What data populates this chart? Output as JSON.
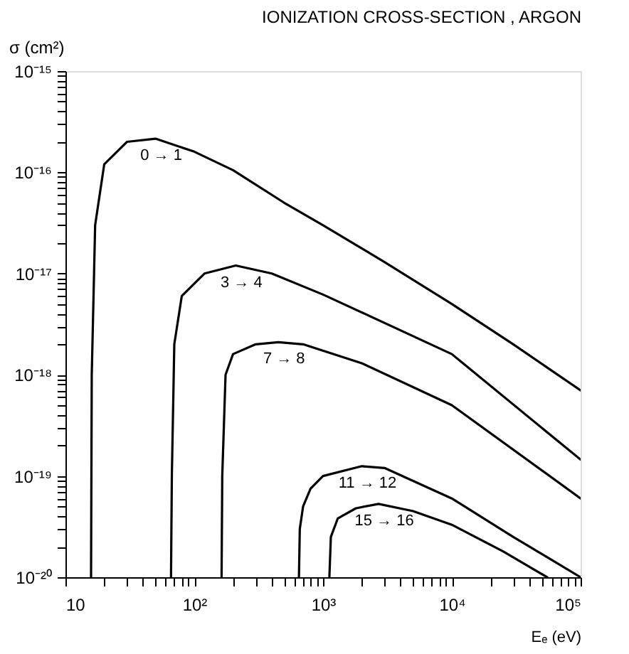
{
  "chart_data": {
    "type": "line",
    "title": "IONIZATION CROSS-SECTION , ARGON",
    "xlabel": "Eₑ (eV)",
    "ylabel": "σ (cm²)",
    "log": "xy",
    "grid": false,
    "legend": false,
    "marker": "none",
    "line_style": "solid",
    "xlim": [
      10,
      100000
    ],
    "ylim": [
      1e-20,
      1e-15
    ],
    "xticks": [
      {
        "value": 10,
        "label": "10"
      },
      {
        "value": 20,
        "label": null
      },
      {
        "value": 30,
        "label": null
      },
      {
        "value": 40,
        "label": null
      },
      {
        "value": 50,
        "label": null
      },
      {
        "value": 60,
        "label": null
      },
      {
        "value": 70,
        "label": null
      },
      {
        "value": 80,
        "label": null
      },
      {
        "value": 90,
        "label": null
      },
      {
        "value": 100,
        "label": "10²"
      },
      {
        "value": 200,
        "label": null
      },
      {
        "value": 300,
        "label": null
      },
      {
        "value": 400,
        "label": null
      },
      {
        "value": 500,
        "label": null
      },
      {
        "value": 600,
        "label": null
      },
      {
        "value": 700,
        "label": null
      },
      {
        "value": 800,
        "label": null
      },
      {
        "value": 900,
        "label": null
      },
      {
        "value": 1000,
        "label": "10³"
      },
      {
        "value": 2000,
        "label": null
      },
      {
        "value": 3000,
        "label": null
      },
      {
        "value": 4000,
        "label": null
      },
      {
        "value": 5000,
        "label": null
      },
      {
        "value": 6000,
        "label": null
      },
      {
        "value": 7000,
        "label": null
      },
      {
        "value": 8000,
        "label": null
      },
      {
        "value": 9000,
        "label": null
      },
      {
        "value": 10000,
        "label": "10⁴"
      },
      {
        "value": 20000,
        "label": null
      },
      {
        "value": 30000,
        "label": null
      },
      {
        "value": 40000,
        "label": null
      },
      {
        "value": 50000,
        "label": null
      },
      {
        "value": 60000,
        "label": null
      },
      {
        "value": 70000,
        "label": null
      },
      {
        "value": 80000,
        "label": null
      },
      {
        "value": 90000,
        "label": null
      },
      {
        "value": 100000,
        "label": "10⁵"
      }
    ],
    "yticks": [
      {
        "value": 1e-20,
        "label": "10⁻²⁰"
      },
      {
        "value": 2e-20,
        "label": null
      },
      {
        "value": 3e-20,
        "label": null
      },
      {
        "value": 4e-20,
        "label": null
      },
      {
        "value": 5e-20,
        "label": null
      },
      {
        "value": 6e-20,
        "label": null
      },
      {
        "value": 7e-20,
        "label": null
      },
      {
        "value": 8e-20,
        "label": null
      },
      {
        "value": 9e-20,
        "label": null
      },
      {
        "value": 1e-19,
        "label": "10⁻¹⁹"
      },
      {
        "value": 2e-19,
        "label": null
      },
      {
        "value": 3e-19,
        "label": null
      },
      {
        "value": 4e-19,
        "label": null
      },
      {
        "value": 5e-19,
        "label": null
      },
      {
        "value": 6e-19,
        "label": null
      },
      {
        "value": 7e-19,
        "label": null
      },
      {
        "value": 8e-19,
        "label": null
      },
      {
        "value": 9e-19,
        "label": null
      },
      {
        "value": 1e-18,
        "label": "10⁻¹⁸"
      },
      {
        "value": 2e-18,
        "label": null
      },
      {
        "value": 3e-18,
        "label": null
      },
      {
        "value": 4e-18,
        "label": null
      },
      {
        "value": 5e-18,
        "label": null
      },
      {
        "value": 6e-18,
        "label": null
      },
      {
        "value": 7e-18,
        "label": null
      },
      {
        "value": 8e-18,
        "label": null
      },
      {
        "value": 9e-18,
        "label": null
      },
      {
        "value": 1e-17,
        "label": "10⁻¹⁷"
      },
      {
        "value": 2e-17,
        "label": null
      },
      {
        "value": 3e-17,
        "label": null
      },
      {
        "value": 4e-17,
        "label": null
      },
      {
        "value": 5e-17,
        "label": null
      },
      {
        "value": 6e-17,
        "label": null
      },
      {
        "value": 7e-17,
        "label": null
      },
      {
        "value": 8e-17,
        "label": null
      },
      {
        "value": 9e-17,
        "label": null
      },
      {
        "value": 1e-16,
        "label": "10⁻¹⁶"
      },
      {
        "value": 2e-16,
        "label": null
      },
      {
        "value": 3e-16,
        "label": null
      },
      {
        "value": 4e-16,
        "label": null
      },
      {
        "value": 5e-16,
        "label": null
      },
      {
        "value": 6e-16,
        "label": null
      },
      {
        "value": 7e-16,
        "label": null
      },
      {
        "value": 8e-16,
        "label": null
      },
      {
        "value": 9e-16,
        "label": null
      },
      {
        "value": 1e-15,
        "label": "10⁻¹⁵"
      }
    ],
    "series": [
      {
        "name": "0 → 1",
        "color": "#000000",
        "x": [
          15.8,
          16,
          17,
          20,
          30,
          50,
          100,
          200,
          500,
          1000,
          3000,
          10000,
          30000,
          100000
        ],
        "values": [
          1e-20,
          1e-18,
          3e-17,
          1.2e-16,
          2e-16,
          2.15e-16,
          1.6e-16,
          1.05e-16,
          5e-17,
          3e-17,
          1.3e-17,
          5e-18,
          2e-18,
          7e-19
        ]
      },
      {
        "name": "3 → 4",
        "color": "#000000",
        "x": [
          66,
          67,
          70,
          80,
          120,
          210,
          400,
          1000,
          10000,
          100000
        ],
        "values": [
          1e-20,
          1e-19,
          2e-18,
          6e-18,
          1e-17,
          1.2e-17,
          1e-17,
          6.2e-18,
          1.6e-18,
          1.45e-19
        ]
      },
      {
        "name": "7 → 8",
        "color": "#000000",
        "x": [
          163,
          165,
          175,
          200,
          300,
          450,
          700,
          2000,
          10000,
          100000
        ],
        "values": [
          1e-20,
          1e-19,
          1e-18,
          1.6e-18,
          2e-18,
          2.1e-18,
          2e-18,
          1.3e-18,
          5e-19,
          6e-20
        ]
      },
      {
        "name": "11 → 12",
        "color": "#000000",
        "x": [
          650,
          660,
          700,
          800,
          1000,
          2000,
          3000,
          10000,
          30000,
          100000
        ],
        "values": [
          1e-20,
          3e-20,
          5e-20,
          7.5e-20,
          1e-19,
          1.25e-19,
          1.2e-19,
          6e-20,
          2.5e-20,
          1e-20
        ]
      },
      {
        "name": "15 → 16",
        "color": "#000000",
        "x": [
          1120,
          1150,
          1300,
          1800,
          2700,
          5000,
          10000,
          25000,
          55000
        ],
        "values": [
          1e-20,
          2.5e-20,
          3.8e-20,
          4.8e-20,
          5.3e-20,
          4.5e-20,
          3.3e-20,
          1.8e-20,
          1e-20
        ]
      }
    ]
  }
}
